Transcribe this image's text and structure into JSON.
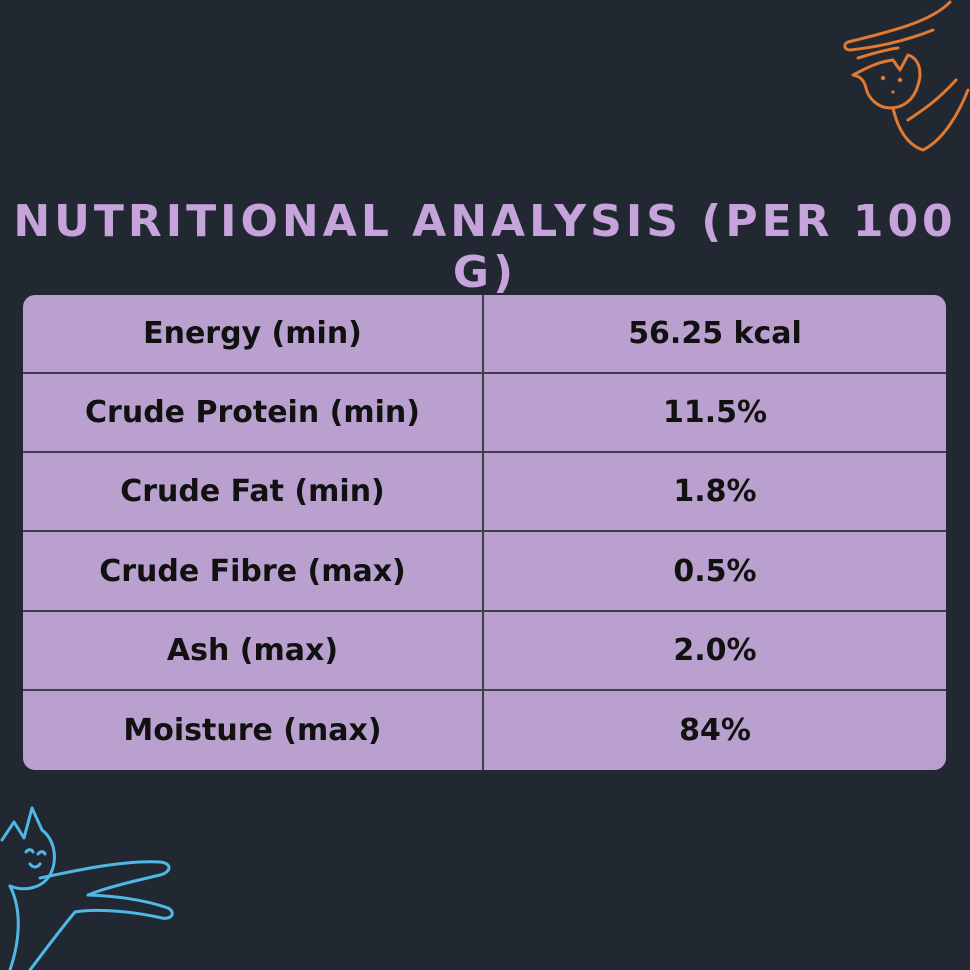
{
  "title": "NUTRITIONAL ANALYSIS (PER 100 G)",
  "rows": [
    {
      "label": "Energy (min)",
      "value": "56.25 kcal"
    },
    {
      "label": "Crude Protein (min)",
      "value": "11.5%"
    },
    {
      "label": "Crude Fat (min)",
      "value": "1.8%"
    },
    {
      "label": "Crude Fibre (max)",
      "value": "0.5%"
    },
    {
      "label": "Ash (max)",
      "value": "2.0%"
    },
    {
      "label": "Moisture (max)",
      "value": "84%"
    }
  ],
  "colors": {
    "background": "#212832",
    "title": "#c6a4db",
    "table": "#b9a0cf",
    "orange_cat": "#e07a32",
    "blue_cat": "#4fb8e6"
  },
  "icons": [
    "orange-cat-doodle-icon",
    "blue-cat-doodle-icon"
  ]
}
